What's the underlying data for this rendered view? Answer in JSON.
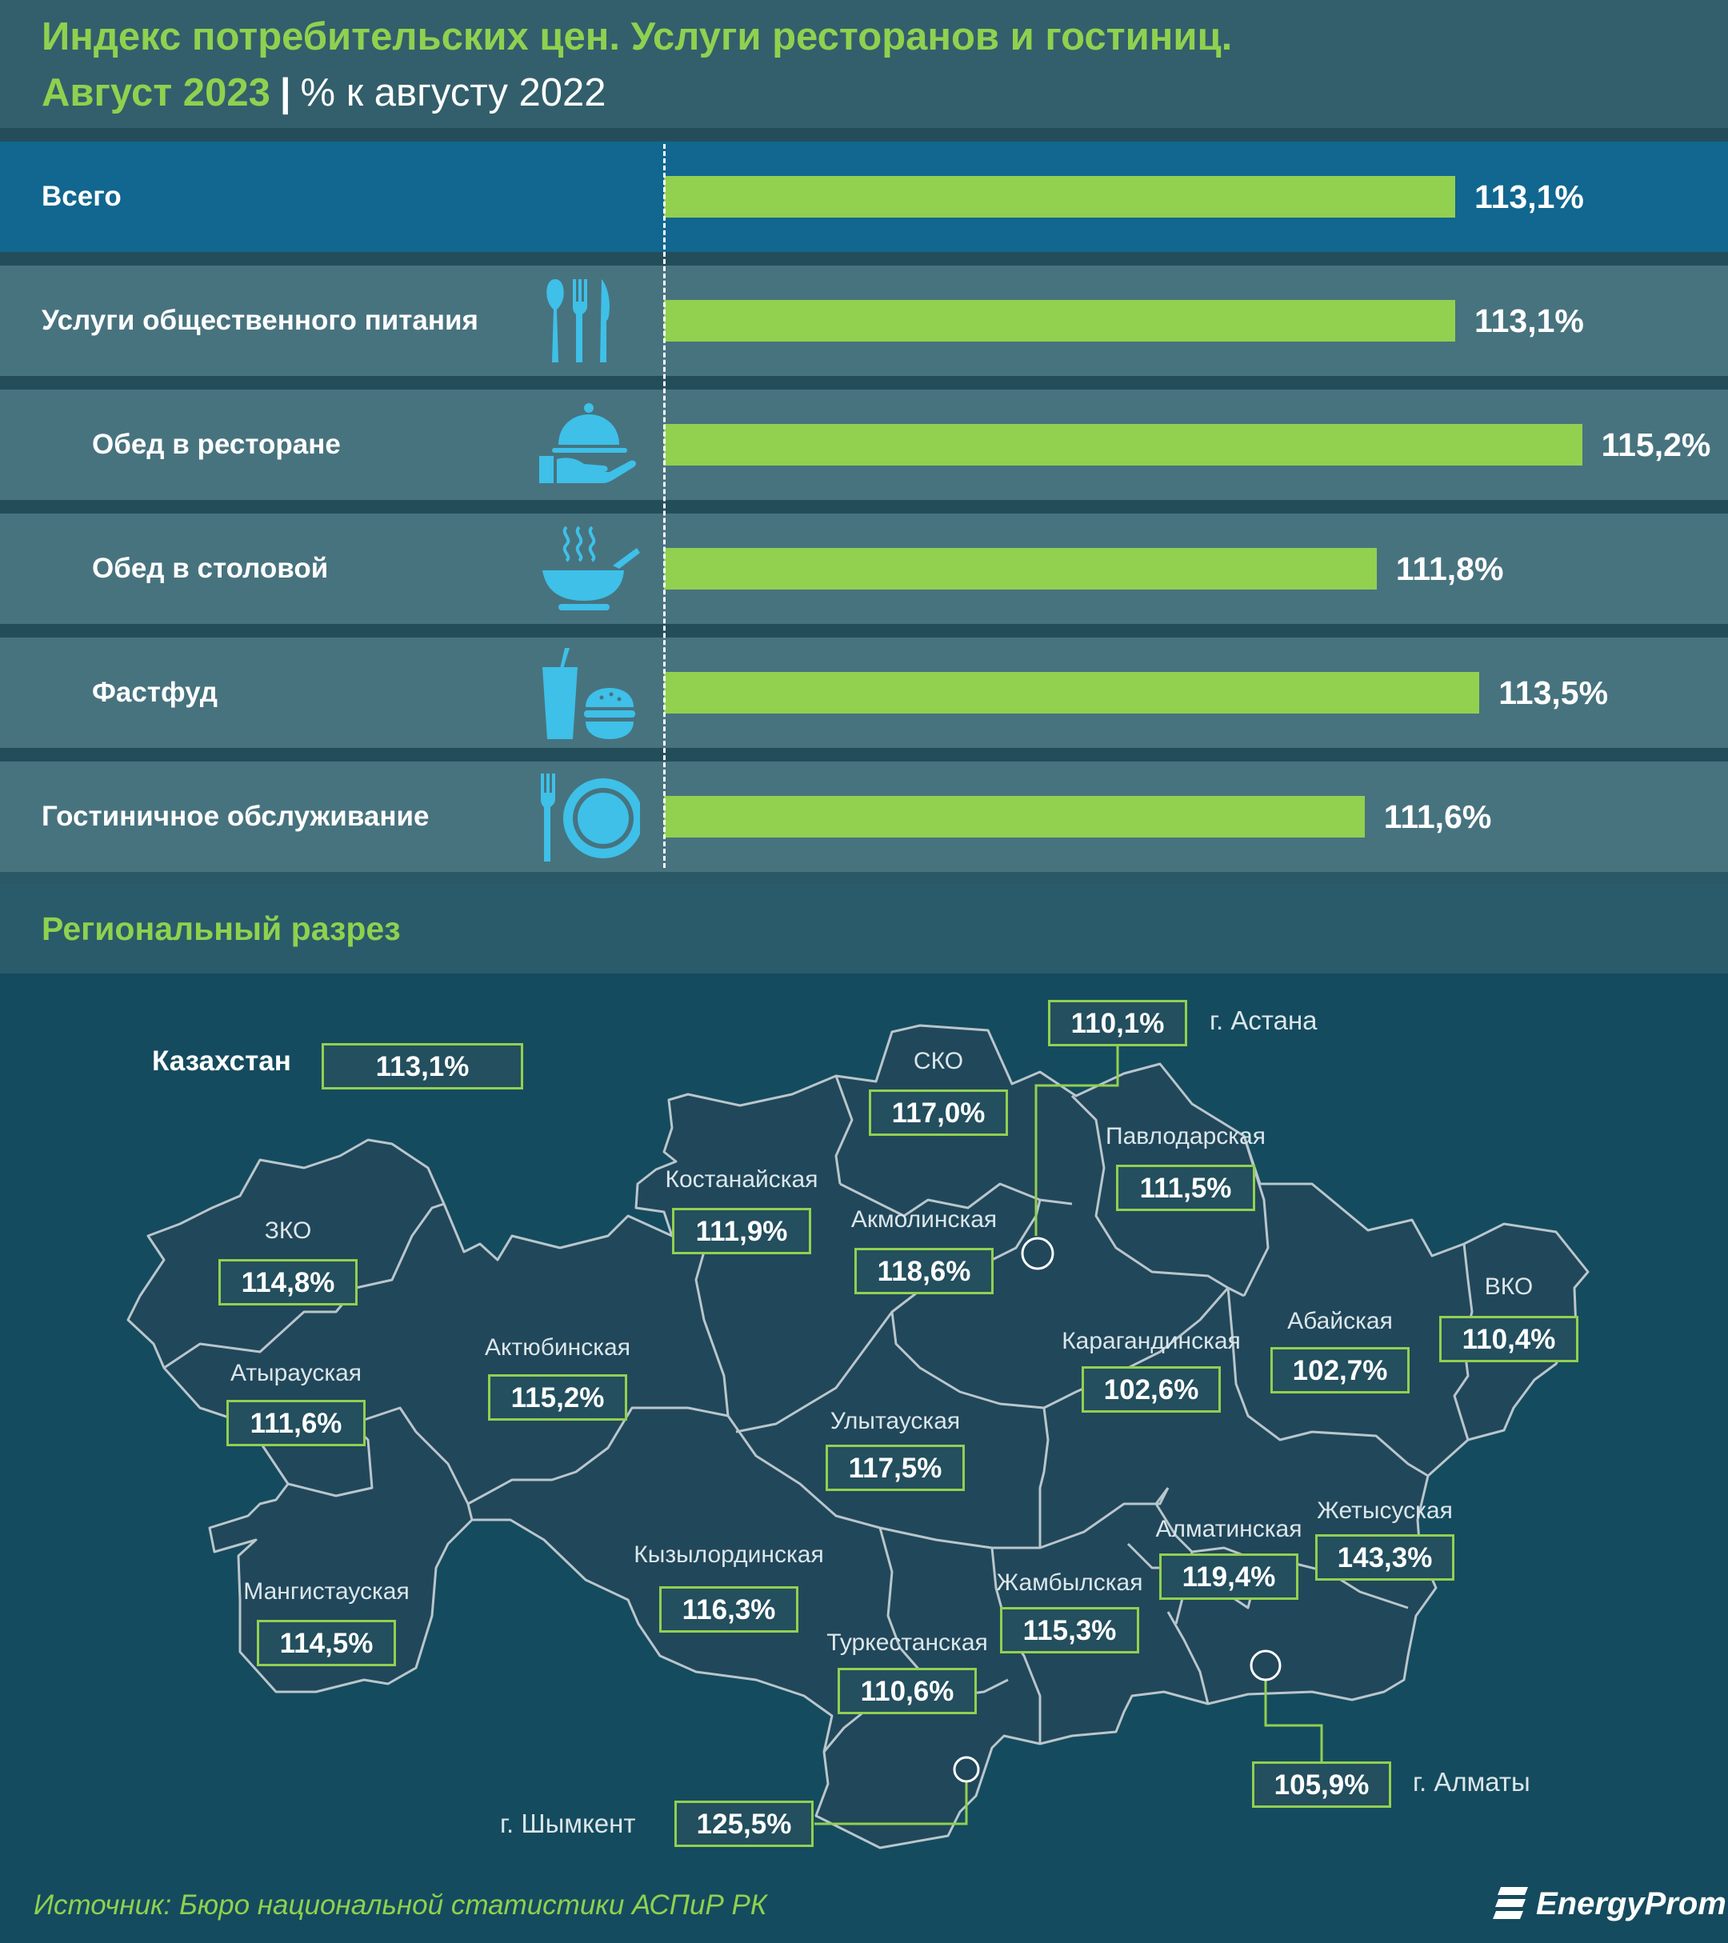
{
  "header": {
    "title": "Индекс потребительских цен. Услуги ресторанов и гостиниц.",
    "period": "Август 2023",
    "separator": "|",
    "unit": "% к августу 2022"
  },
  "chart_data": [
    {
      "type": "bar",
      "orientation": "horizontal",
      "categories": [
        "Всего",
        "Услуги общественного питания",
        "Обед в ресторане",
        "Обед в столовой",
        "Фастфуд",
        "Гостиничное обслуживание"
      ],
      "values": [
        113.1,
        113.1,
        115.2,
        111.8,
        113.5,
        111.6
      ],
      "value_labels": [
        "113,1%",
        "113,1%",
        "115,2%",
        "111,8%",
        "113,5%",
        "111,6%"
      ],
      "icons": [
        "",
        "cutlery-icon",
        "cloche-icon",
        "soup-bowl-icon",
        "fastfood-icon",
        "plate-icon"
      ],
      "bar_color": "#92d050"
    },
    {
      "type": "map",
      "title": "Региональный разрез",
      "country": {
        "name": "Казахстан",
        "value": "113,1%"
      },
      "regions": [
        {
          "name": "СКО",
          "value": "117,0%"
        },
        {
          "name": "Павлодарская",
          "value": "111,5%"
        },
        {
          "name": "Костанайская",
          "value": "111,9%"
        },
        {
          "name": "Акмолинская",
          "value": "118,6%"
        },
        {
          "name": "ЗКО",
          "value": "114,8%"
        },
        {
          "name": "Актюбинская",
          "value": "115,2%"
        },
        {
          "name": "Атырауская",
          "value": "111,6%"
        },
        {
          "name": "Карагандинская",
          "value": "102,6%"
        },
        {
          "name": "Абайская",
          "value": "102,7%"
        },
        {
          "name": "ВКО",
          "value": "110,4%"
        },
        {
          "name": "Улытауская",
          "value": "117,5%"
        },
        {
          "name": "Кызылординская",
          "value": "116,3%"
        },
        {
          "name": "Алматинская",
          "value": "119,4%"
        },
        {
          "name": "Жетысуская",
          "value": "143,3%"
        },
        {
          "name": "Мангистауская",
          "value": "114,5%"
        },
        {
          "name": "Жамбылская",
          "value": "115,3%"
        },
        {
          "name": "Туркестанская",
          "value": "110,6%"
        }
      ],
      "cities": [
        {
          "name": "г. Астана",
          "value": "110,1%"
        },
        {
          "name": "г. Алматы",
          "value": "105,9%"
        },
        {
          "name": "г. Шымкент",
          "value": "125,5%"
        }
      ]
    }
  ],
  "footer": {
    "source": "Источник: Бюро национальной статистики АСПиР РК",
    "logo": "EnergyProm"
  }
}
